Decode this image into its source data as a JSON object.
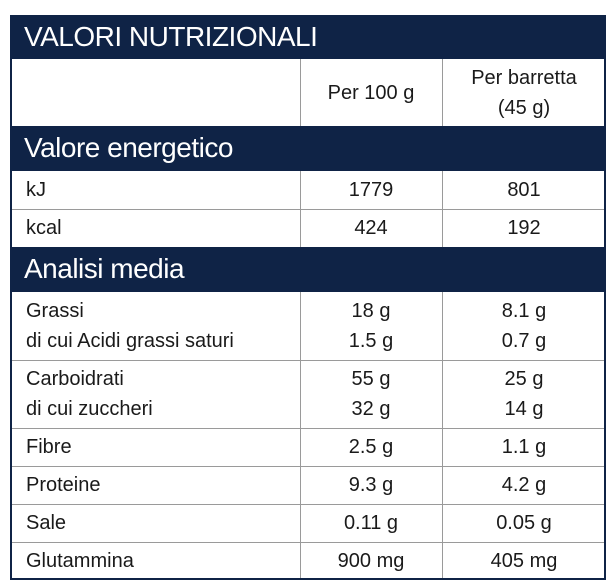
{
  "title": "VALORI NUTRIZIONALI",
  "columns": [
    [
      "Per 100 g"
    ],
    [
      "Per barretta",
      "(45 g)"
    ]
  ],
  "sections": [
    {
      "title": "Valore energetico",
      "rows": [
        [
          [
            "kJ"
          ],
          [
            "1779"
          ],
          [
            "801"
          ]
        ],
        [
          [
            "kcal"
          ],
          [
            "424"
          ],
          [
            "192"
          ]
        ]
      ]
    },
    {
      "title": "Analisi media",
      "rows": [
        [
          [
            "Grassi",
            "di cui Acidi grassi saturi"
          ],
          [
            "18 g",
            "1.5 g"
          ],
          [
            "8.1 g",
            "0.7 g"
          ]
        ],
        [
          [
            "Carboidrati",
            "di cui zuccheri"
          ],
          [
            "55 g",
            "32 g"
          ],
          [
            "25 g",
            "14 g"
          ]
        ],
        [
          [
            "Fibre"
          ],
          [
            "2.5 g"
          ],
          [
            "1.1 g"
          ]
        ],
        [
          [
            "Proteine"
          ],
          [
            "9.3 g"
          ],
          [
            "4.2 g"
          ]
        ],
        [
          [
            "Sale"
          ],
          [
            "0.11 g"
          ],
          [
            "0.05 g"
          ]
        ],
        [
          [
            "Glutammina"
          ],
          [
            "900 mg"
          ],
          [
            "405 mg"
          ]
        ]
      ]
    }
  ]
}
